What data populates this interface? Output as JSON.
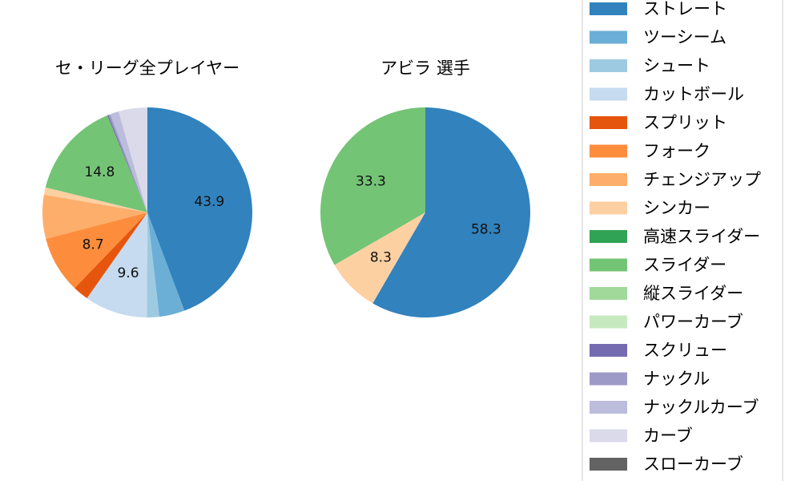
{
  "chart_data": [
    {
      "type": "pie",
      "title": "セ・リーグ全プレイヤー",
      "categories": [
        "ストレート",
        "ツーシーム",
        "シュート",
        "カットボール",
        "スプリット",
        "フォーク",
        "チェンジアップ",
        "シンカー",
        "高速スライダー",
        "スライダー",
        "縦スライダー",
        "パワーカーブ",
        "スクリュー",
        "ナックル",
        "ナックルカーブ",
        "カーブ",
        "スローカーブ"
      ],
      "values": [
        43.9,
        3.9,
        1.9,
        9.6,
        2.4,
        8.7,
        6.7,
        1.1,
        0.0,
        14.8,
        0.0,
        0.0,
        0.2,
        0.3,
        1.3,
        4.4,
        0.0
      ],
      "labels_shown": [
        "43.9",
        "",
        "",
        "9.6",
        "",
        "8.7",
        "",
        "",
        "",
        "14.8",
        "",
        "",
        "",
        "",
        "",
        "",
        ""
      ]
    },
    {
      "type": "pie",
      "title": "アビラ  選手",
      "categories": [
        "ストレート",
        "シンカー",
        "スライダー"
      ],
      "values": [
        58.3,
        8.3,
        33.3
      ],
      "labels_shown": [
        "58.3",
        "8.3",
        "33.3"
      ]
    }
  ],
  "legend": {
    "placement": "right",
    "entries": [
      {
        "label": "ストレート",
        "color": "#3182bd"
      },
      {
        "label": "ツーシーム",
        "color": "#6baed6"
      },
      {
        "label": "シュート",
        "color": "#9ecae1"
      },
      {
        "label": "カットボール",
        "color": "#c6dbef"
      },
      {
        "label": "スプリット",
        "color": "#e6550d"
      },
      {
        "label": "フォーク",
        "color": "#fd8d3c"
      },
      {
        "label": "チェンジアップ",
        "color": "#fdae6b"
      },
      {
        "label": "シンカー",
        "color": "#fdd0a2"
      },
      {
        "label": "高速スライダー",
        "color": "#31a354"
      },
      {
        "label": "スライダー",
        "color": "#74c476"
      },
      {
        "label": "縦スライダー",
        "color": "#a1d99b"
      },
      {
        "label": "パワーカーブ",
        "color": "#c7e9c0"
      },
      {
        "label": "スクリュー",
        "color": "#756bb1"
      },
      {
        "label": "ナックル",
        "color": "#9e9ac8"
      },
      {
        "label": "ナックルカーブ",
        "color": "#bcbddc"
      },
      {
        "label": "カーブ",
        "color": "#dadaeb"
      },
      {
        "label": "スローカーブ",
        "color": "#636363"
      }
    ]
  }
}
